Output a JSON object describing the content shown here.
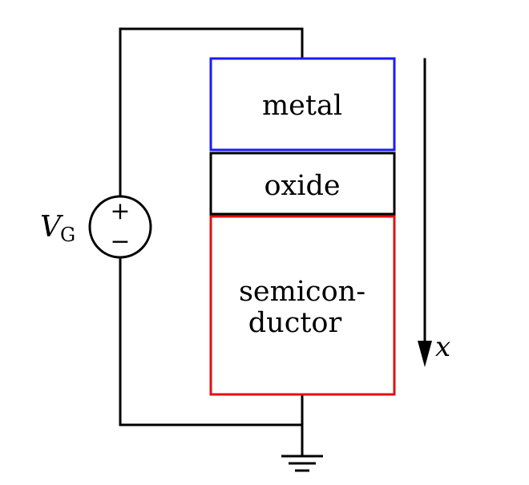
{
  "source": {
    "label_main": "V",
    "label_sub": "G",
    "plus": "+",
    "minus": "−"
  },
  "layers": {
    "metal": {
      "label": "metal",
      "border_color": "#1a1aff"
    },
    "oxide": {
      "label": "oxide",
      "border_color": "#000000"
    },
    "semiconductor": {
      "label_line1": "semicon-",
      "label_line2": "ductor",
      "border_color": "#e01010"
    }
  },
  "axis": {
    "label": "x"
  },
  "ground": {
    "icon": "ground-icon"
  }
}
